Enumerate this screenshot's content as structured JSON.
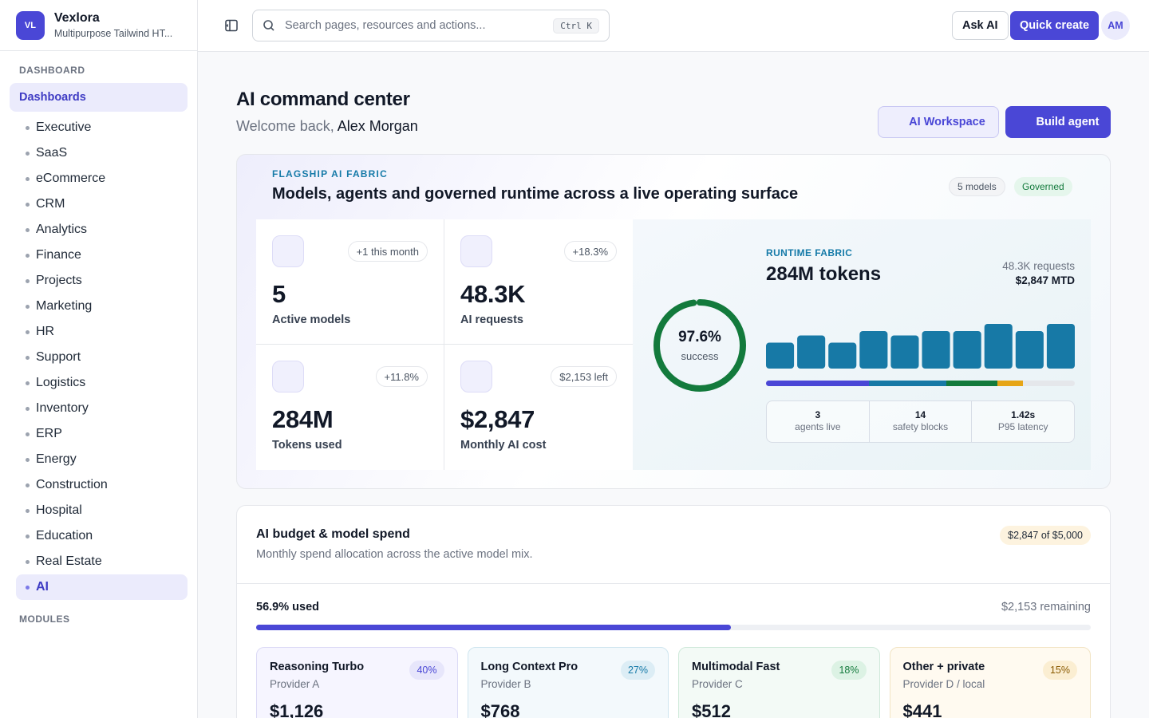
{
  "brand": {
    "logo": "VL",
    "name": "Vexlora",
    "subtitle": "Multipurpose Tailwind HT..."
  },
  "sidebar": {
    "section_dashboard": "DASHBOARD",
    "group_label": "Dashboards",
    "items": [
      "Executive",
      "SaaS",
      "eCommerce",
      "CRM",
      "Analytics",
      "Finance",
      "Projects",
      "Marketing",
      "HR",
      "Support",
      "Logistics",
      "Inventory",
      "ERP",
      "Energy",
      "Construction",
      "Hospital",
      "Education",
      "Real Estate",
      "AI"
    ],
    "active_item": "AI",
    "section_modules": "MODULES"
  },
  "topbar": {
    "search_placeholder": "Search pages, resources and actions...",
    "shortcut": "Ctrl K",
    "ask_ai": "Ask AI",
    "quick_create": "Quick create",
    "avatar": "AM"
  },
  "page": {
    "title": "AI command center",
    "welcome_prefix": "Welcome back,",
    "user_name": "Alex Morgan",
    "workspace_btn": "AI Workspace",
    "build_btn": "Build agent"
  },
  "flagship": {
    "eyebrow": "FLAGSHIP AI FABRIC",
    "title": "Models, agents and governed runtime across a live operating surface",
    "chip_models": "5 models",
    "chip_governed": "Governed",
    "stats": [
      {
        "badge": "+1 this month",
        "value": "5",
        "label": "Active models"
      },
      {
        "badge": "+18.3%",
        "value": "48.3K",
        "label": "AI requests"
      },
      {
        "badge": "+11.8%",
        "value": "284M",
        "label": "Tokens used"
      },
      {
        "badge": "$2,153 left",
        "value": "$2,847",
        "label": "Monthly AI cost"
      }
    ],
    "runtime": {
      "success_pct": 97.6,
      "success_value": "97.6%",
      "success_label": "success",
      "eyebrow": "RUNTIME FABRIC",
      "title": "284M tokens",
      "requests": "48.3K requests",
      "mtd": "$2,847 MTD",
      "bars": [
        0.58,
        0.74,
        0.58,
        0.84,
        0.74,
        0.84,
        0.84,
        1.0,
        0.84,
        1.0
      ],
      "bar_color": "#1779a6",
      "segments": [
        {
          "share": 0.333,
          "color": "#4a47d6"
        },
        {
          "share": 0.25,
          "color": "#1779a6"
        },
        {
          "share": 0.167,
          "color": "#137a3c"
        },
        {
          "share": 0.083,
          "color": "#e6a517"
        }
      ],
      "minis": [
        {
          "value": "3",
          "label": "agents live"
        },
        {
          "value": "14",
          "label": "safety blocks"
        },
        {
          "value": "1.42s",
          "label": "P95 latency"
        }
      ]
    }
  },
  "budget": {
    "title": "AI budget & model spend",
    "subtitle": "Monthly spend allocation across the active model mix.",
    "chip": "$2,847 of $5,000",
    "used_label": "56.9% used",
    "used_pct": 56.9,
    "remaining": "$2,153 remaining",
    "models": [
      {
        "name": "Reasoning Turbo",
        "provider": "Provider A",
        "pct": "40%",
        "value": "$1,126",
        "tint": "#f6f5ff",
        "border": "#dcdaf6",
        "pct_bg": "#e7e6fb",
        "pct_color": "#4a47d6"
      },
      {
        "name": "Long Context Pro",
        "provider": "Provider B",
        "pct": "27%",
        "value": "$768",
        "tint": "#f3f9fc",
        "border": "#cfe5ef",
        "pct_bg": "#dcedf5",
        "pct_color": "#157aa8"
      },
      {
        "name": "Multimodal Fast",
        "provider": "Provider C",
        "pct": "18%",
        "value": "$512",
        "tint": "#f3faf6",
        "border": "#cfe9da",
        "pct_bg": "#dcf2e4",
        "pct_color": "#137a3c"
      },
      {
        "name": "Other + private",
        "provider": "Provider D / local",
        "pct": "15%",
        "value": "$441",
        "tint": "#fffaf0",
        "border": "#f2e4c4",
        "pct_bg": "#fbeed2",
        "pct_color": "#8a5a00"
      }
    ]
  }
}
